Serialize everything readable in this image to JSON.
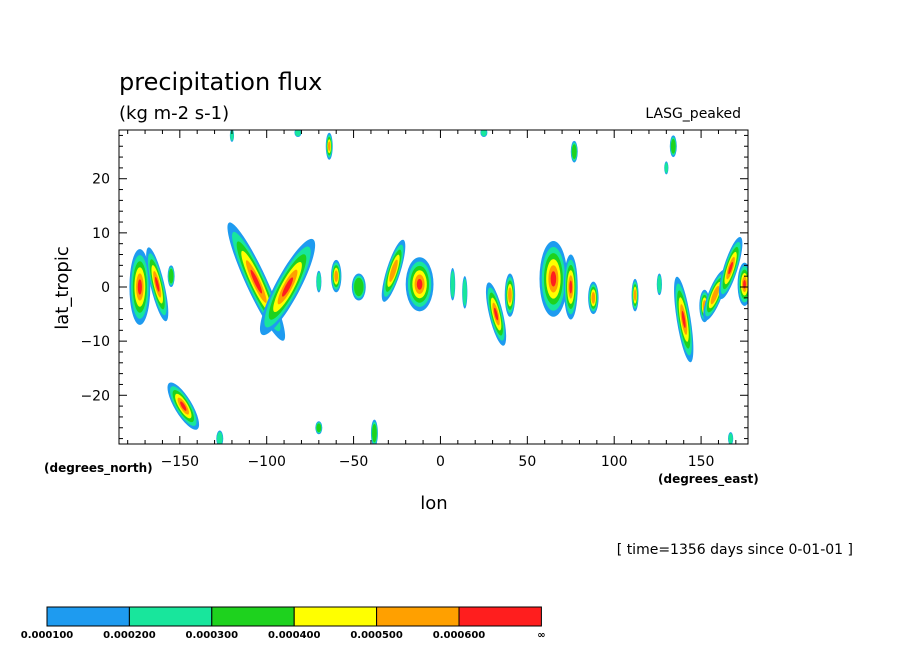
{
  "chart_data": {
    "type": "heatmap",
    "title": "precipitation flux",
    "units": "(kg m-2 s-1)",
    "model_label": "LASG_peaked",
    "xlabel": "lon",
    "ylabel": "lat_tropic",
    "x_units_label": "(degrees_east)",
    "y_units_label": "(degrees_north)",
    "time_label": "[ time=1356 days since 0-01-01 ]",
    "xlim": [
      -185,
      177
    ],
    "ylim": [
      -29,
      29
    ],
    "x_ticks": [
      -150,
      -100,
      -50,
      0,
      50,
      100,
      150
    ],
    "x_tick_labels": [
      "−150",
      "−100",
      "−50",
      "0",
      "50",
      "100",
      "150"
    ],
    "y_ticks": [
      -20,
      -10,
      0,
      10,
      20
    ],
    "y_tick_labels": [
      "−20",
      "−10",
      "0",
      "10",
      "20"
    ],
    "levels": [
      "0.000100",
      "0.000200",
      "0.000300",
      "0.000400",
      "0.000500",
      "0.000600",
      "∞"
    ],
    "level_colors": [
      "#1e9bf0",
      "#18e69c",
      "#1ed21e",
      "#ffff00",
      "#ffa000",
      "#ff1e1e"
    ],
    "features": [
      {
        "lon": -173,
        "lat": 0,
        "w": 6,
        "h": 7,
        "tilt": 0,
        "core": 5
      },
      {
        "lon": -163,
        "lat": 0.5,
        "w": 4,
        "h": 7,
        "tilt": 0.3,
        "core": 5
      },
      {
        "lon": -155,
        "lat": 2,
        "w": 2,
        "h": 2,
        "tilt": 0,
        "core": 2
      },
      {
        "lon": -106,
        "lat": 1,
        "w": 6,
        "h": 12,
        "tilt": 0.6,
        "core": 5
      },
      {
        "lon": -88,
        "lat": 0,
        "w": 7,
        "h": 10,
        "tilt": -0.7,
        "core": 5
      },
      {
        "lon": -60,
        "lat": 2,
        "w": 3,
        "h": 3,
        "tilt": 0,
        "core": 4
      },
      {
        "lon": -47,
        "lat": 0,
        "w": 4,
        "h": 2.5,
        "tilt": 0,
        "core": 2
      },
      {
        "lon": -27,
        "lat": 3,
        "w": 4,
        "h": 6,
        "tilt": -0.4,
        "core": 4
      },
      {
        "lon": -12,
        "lat": 0.5,
        "w": 8,
        "h": 5,
        "tilt": 0,
        "core": 5
      },
      {
        "lon": 32,
        "lat": -5,
        "w": 4,
        "h": 6,
        "tilt": 0.3,
        "core": 5
      },
      {
        "lon": 40,
        "lat": -1.5,
        "w": 3,
        "h": 4,
        "tilt": 0,
        "core": 4
      },
      {
        "lon": 65,
        "lat": 1.5,
        "w": 8,
        "h": 7,
        "tilt": 0,
        "core": 5
      },
      {
        "lon": 75,
        "lat": 0,
        "w": 4,
        "h": 6,
        "tilt": 0,
        "core": 5
      },
      {
        "lon": 88,
        "lat": -2,
        "w": 3,
        "h": 3,
        "tilt": 0,
        "core": 4
      },
      {
        "lon": 112,
        "lat": -1.5,
        "w": 2,
        "h": 3,
        "tilt": 0,
        "core": 4
      },
      {
        "lon": 140,
        "lat": -6,
        "w": 4,
        "h": 8,
        "tilt": 0.2,
        "core": 5
      },
      {
        "lon": 152,
        "lat": -3.5,
        "w": 3,
        "h": 3,
        "tilt": 0,
        "core": 4
      },
      {
        "lon": 158,
        "lat": -1.5,
        "w": 4,
        "h": 5,
        "tilt": -0.5,
        "core": 4
      },
      {
        "lon": 167,
        "lat": 3.5,
        "w": 4,
        "h": 6,
        "tilt": -0.4,
        "core": 5
      },
      {
        "lon": 175,
        "lat": 0.5,
        "w": 4,
        "h": 4,
        "tilt": 0,
        "core": 5
      },
      {
        "lon": -148,
        "lat": -22,
        "w": 5,
        "h": 5,
        "tilt": 0.8,
        "core": 5
      },
      {
        "lon": -127,
        "lat": -28,
        "w": 2,
        "h": 1.5,
        "tilt": 0,
        "core": 1
      },
      {
        "lon": -64,
        "lat": 26,
        "w": 2,
        "h": 2.5,
        "tilt": 0,
        "core": 4
      },
      {
        "lon": 77,
        "lat": 25,
        "w": 2,
        "h": 2,
        "tilt": 0,
        "core": 2
      },
      {
        "lon": 134,
        "lat": 26,
        "w": 2,
        "h": 2,
        "tilt": 0,
        "core": 2
      },
      {
        "lon": 130,
        "lat": 22,
        "w": 1.2,
        "h": 1.2,
        "tilt": 0,
        "core": 1
      },
      {
        "lon": -70,
        "lat": -26,
        "w": 2,
        "h": 1.2,
        "tilt": 0,
        "core": 2
      },
      {
        "lon": -38,
        "lat": -27,
        "w": 2,
        "h": 2.5,
        "tilt": 0,
        "core": 2
      },
      {
        "lon": 167,
        "lat": -28,
        "w": 1.5,
        "h": 1.2,
        "tilt": 0,
        "core": 1
      },
      {
        "lon": -120,
        "lat": 28,
        "w": 1.2,
        "h": 1.2,
        "tilt": 0,
        "core": 1
      },
      {
        "lon": -82,
        "lat": 28.5,
        "w": 2,
        "h": 0.8,
        "tilt": 0,
        "core": 1
      },
      {
        "lon": 25,
        "lat": 28.5,
        "w": 2,
        "h": 0.8,
        "tilt": 0,
        "core": 1
      },
      {
        "lon": 7,
        "lat": 0.5,
        "w": 1.5,
        "h": 3,
        "tilt": 0,
        "core": 1
      },
      {
        "lon": 14,
        "lat": -1,
        "w": 1.5,
        "h": 3,
        "tilt": 0,
        "core": 1
      },
      {
        "lon": 126,
        "lat": 0.5,
        "w": 1.5,
        "h": 2,
        "tilt": 0,
        "core": 1
      },
      {
        "lon": -70,
        "lat": 1,
        "w": 1.5,
        "h": 2,
        "tilt": 0,
        "core": 1
      }
    ]
  }
}
